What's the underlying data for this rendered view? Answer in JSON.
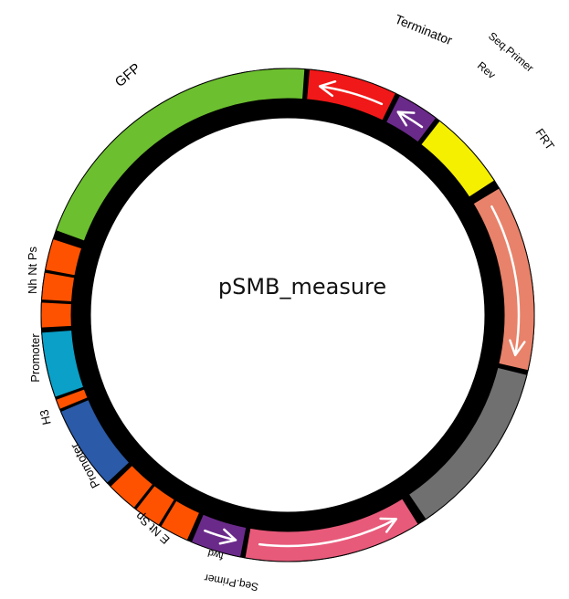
{
  "plasmid": {
    "name": "pSMB_measure",
    "colors": {
      "backbone": "#000000",
      "arrow": "#ffffff"
    },
    "features": [
      {
        "name": "GFP",
        "color": "#6cbf2f",
        "segments": 1,
        "arrow": false
      },
      {
        "name": "Terminator",
        "color": "#f01818",
        "segments": 1,
        "arrow": true,
        "direction": "ccw"
      },
      {
        "name": "Seq.Primer Rev",
        "color": "#6a2a8a",
        "segments": 1,
        "arrow": true,
        "direction": "ccw"
      },
      {
        "name": "FRT",
        "color": "#f5f000",
        "segments": 1,
        "arrow": false
      },
      {
        "name": "",
        "color": "#e8826a",
        "segments": 1,
        "arrow": true,
        "direction": "cw"
      },
      {
        "name": "",
        "color": "#707070",
        "segments": 1,
        "arrow": false
      },
      {
        "name": "",
        "color": "#e85a7a",
        "segments": 1,
        "arrow": true,
        "direction": "ccw"
      },
      {
        "name": "Seq.Primer fwd",
        "color": "#6a2a8a",
        "segments": 1,
        "arrow": true,
        "direction": "ccw"
      },
      {
        "name": "E Nt Sp",
        "color": "#ff5200",
        "segments": 3,
        "arrow": false
      },
      {
        "name": "Promoter",
        "color": "#2a5aa8",
        "segments": 1,
        "arrow": false
      },
      {
        "name": "H3",
        "color": "#ff5200",
        "segments": 1,
        "arrow": false
      },
      {
        "name": "Promoter",
        "color": "#0aa0c8",
        "segments": 1,
        "arrow": false
      },
      {
        "name": "Nh Nt Ps",
        "color": "#ff5200",
        "segments": 3,
        "arrow": false
      }
    ]
  },
  "labels": {
    "gfp": "GFP",
    "terminator": "Terminator",
    "seq_primer_rev_1": "Seq.Primer",
    "seq_primer_rev_2": "Rev",
    "frt": "FRT",
    "nh_nt_ps": "Nh Nt Ps",
    "promoter_upper": "Promoter",
    "h3": "H3",
    "promoter_lower": "Promoter",
    "e_nt_sp": "E Nt Sp",
    "seq_primer_fwd_1": "Seq.Primer",
    "seq_primer_fwd_2": "fwd"
  }
}
